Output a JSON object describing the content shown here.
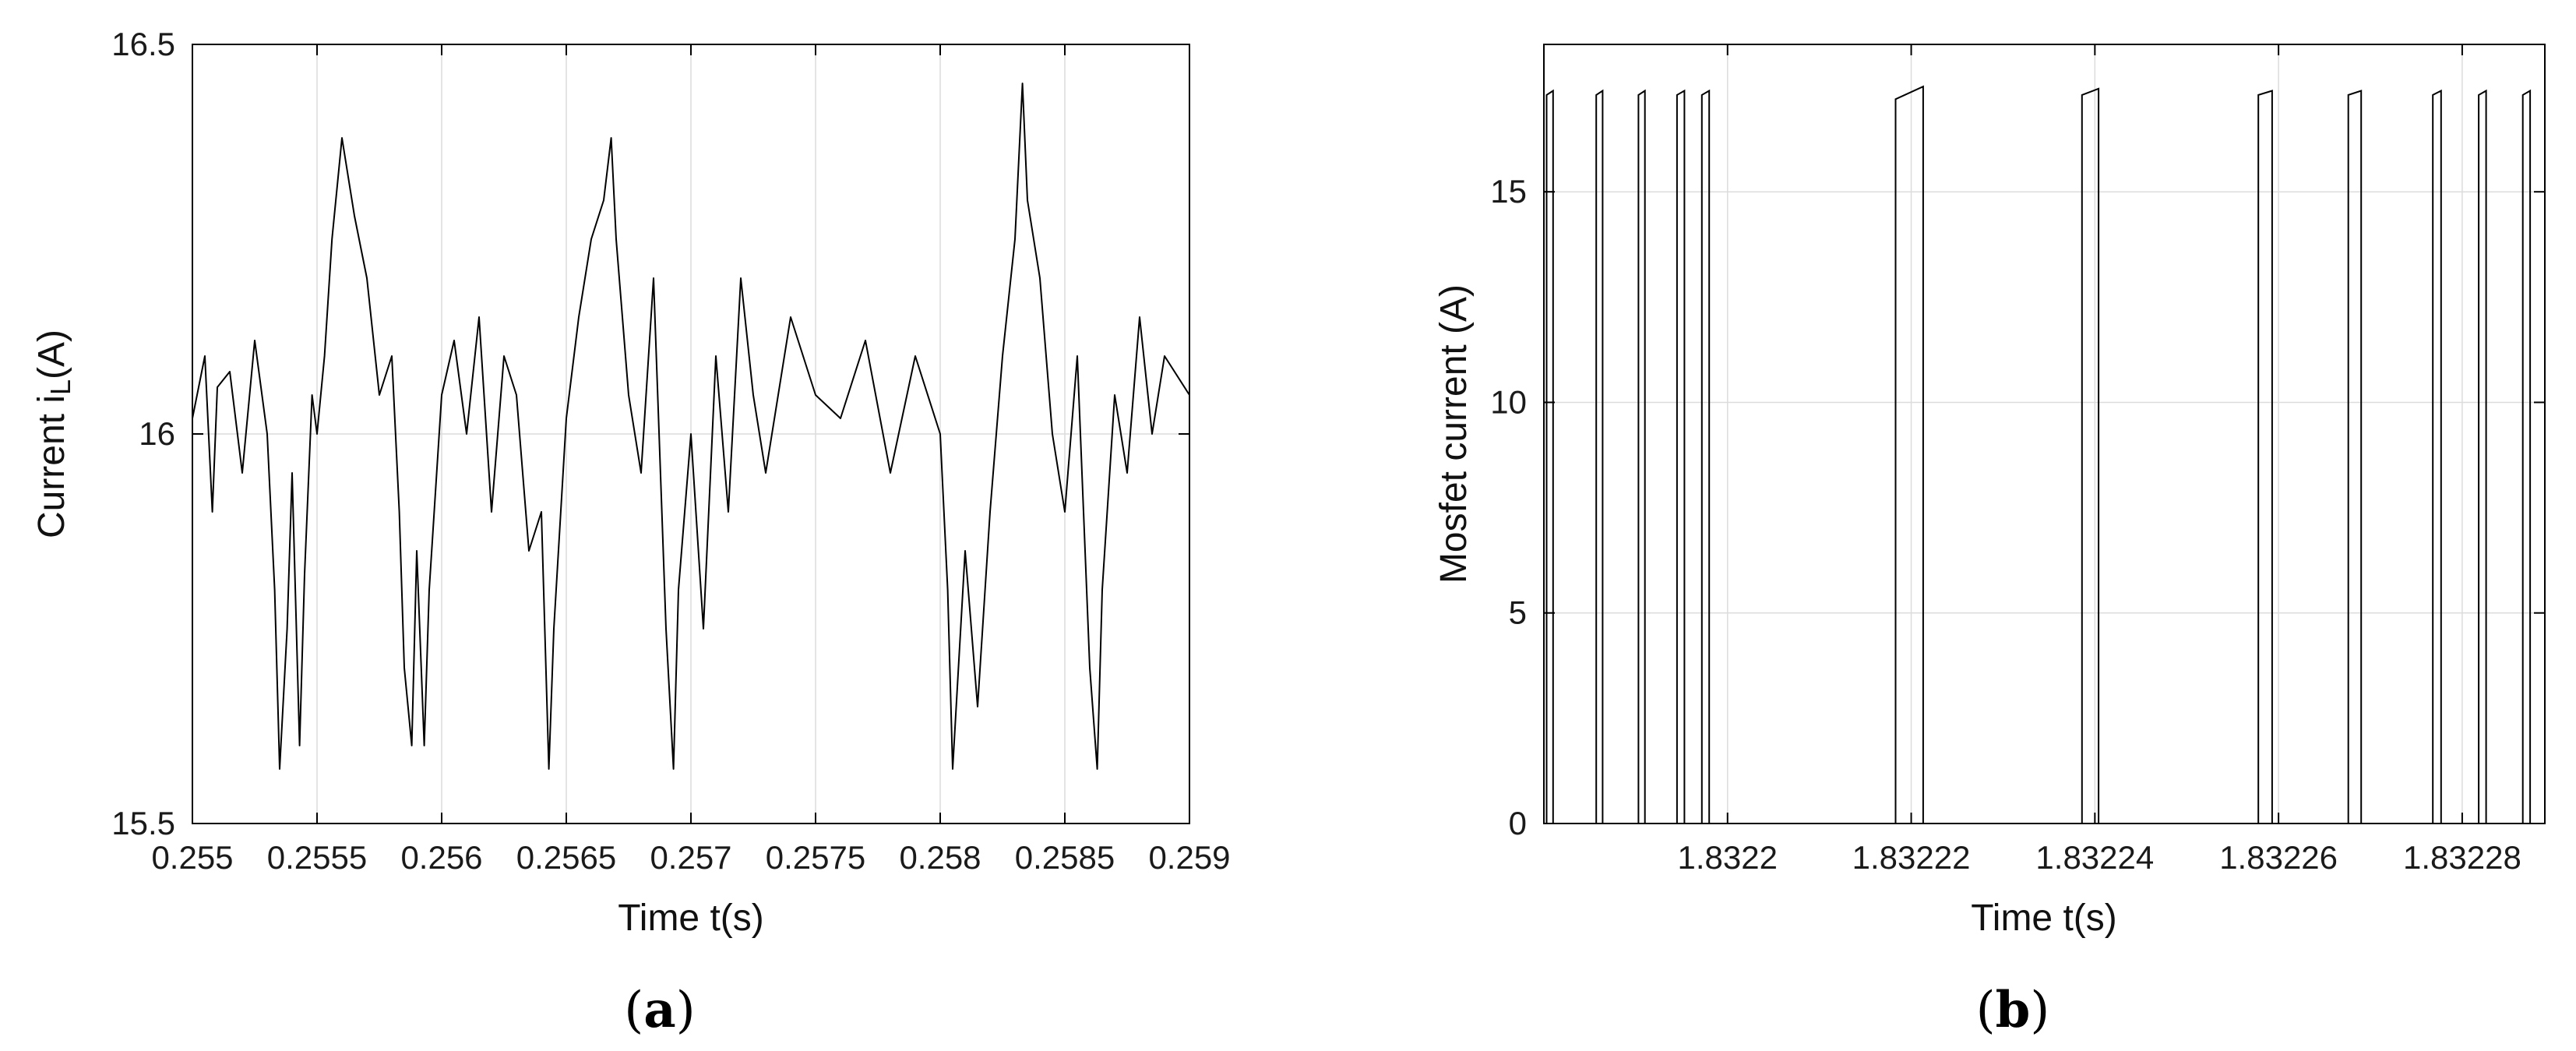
{
  "chart_data": [
    {
      "type": "line",
      "panel_label": "a",
      "xlabel": "Time t(s)",
      "ylabel": "Current i",
      "ylabel_subscript": "L",
      "ylabel_unit": "(A)",
      "xlim": [
        0.255,
        0.259
      ],
      "ylim": [
        15.5,
        16.5
      ],
      "xticks": [
        0.255,
        0.2555,
        0.256,
        0.2565,
        0.257,
        0.2575,
        0.258,
        0.2585,
        0.259
      ],
      "xtick_labels": [
        "0.255",
        "0.2555",
        "0.256",
        "0.2565",
        "0.257",
        "0.2575",
        "0.258",
        "0.2585",
        "0.259"
      ],
      "yticks": [
        15.5,
        16,
        16.5
      ],
      "ytick_labels": [
        "15.5",
        "16",
        "16.5"
      ],
      "grid": true,
      "series": [
        {
          "color": "#000000",
          "x": [
            0.255,
            0.25505,
            0.25508,
            0.2551,
            0.25515,
            0.2552,
            0.25525,
            0.2553,
            0.25533,
            0.25535,
            0.25538,
            0.2554,
            0.25543,
            0.25545,
            0.25548,
            0.2555,
            0.25553,
            0.25556,
            0.2556,
            0.25565,
            0.2557,
            0.25575,
            0.2558,
            0.25583,
            0.25585,
            0.25588,
            0.2559,
            0.25593,
            0.25595,
            0.256,
            0.25605,
            0.2561,
            0.25615,
            0.2562,
            0.25625,
            0.2563,
            0.25635,
            0.2564,
            0.25643,
            0.25645,
            0.2565,
            0.25655,
            0.2566,
            0.25665,
            0.25668,
            0.2567,
            0.25675,
            0.2568,
            0.25685,
            0.2569,
            0.25693,
            0.25695,
            0.257,
            0.25705,
            0.2571,
            0.25715,
            0.2572,
            0.25725,
            0.2573,
            0.2574,
            0.2575,
            0.2576,
            0.2577,
            0.2578,
            0.2579,
            0.258,
            0.25803,
            0.25805,
            0.2581,
            0.25815,
            0.2582,
            0.25825,
            0.2583,
            0.25833,
            0.25835,
            0.2584,
            0.25845,
            0.2585,
            0.25855,
            0.2586,
            0.25863,
            0.25865,
            0.2587,
            0.25875,
            0.2588,
            0.25885,
            0.2589,
            0.259
          ],
          "y": [
            16.02,
            16.1,
            15.9,
            16.06,
            16.08,
            15.95,
            16.12,
            16.0,
            15.8,
            15.57,
            15.75,
            15.95,
            15.6,
            15.82,
            16.05,
            16.0,
            16.1,
            16.25,
            16.38,
            16.28,
            16.2,
            16.05,
            16.1,
            15.9,
            15.7,
            15.6,
            15.85,
            15.6,
            15.8,
            16.05,
            16.12,
            16.0,
            16.15,
            15.9,
            16.1,
            16.05,
            15.85,
            15.9,
            15.57,
            15.75,
            16.02,
            16.15,
            16.25,
            16.3,
            16.38,
            16.25,
            16.05,
            15.95,
            16.2,
            15.75,
            15.57,
            15.8,
            16.0,
            15.75,
            16.1,
            15.9,
            16.2,
            16.05,
            15.95,
            16.15,
            16.05,
            16.02,
            16.12,
            15.95,
            16.1,
            16.0,
            15.8,
            15.57,
            15.85,
            15.65,
            15.9,
            16.1,
            16.25,
            16.45,
            16.3,
            16.2,
            16.0,
            15.9,
            16.1,
            15.7,
            15.57,
            15.8,
            16.05,
            15.95,
            16.15,
            16.0,
            16.1,
            16.05
          ]
        }
      ]
    },
    {
      "type": "line",
      "panel_label": "b",
      "xlabel": "Time t(s)",
      "ylabel": "Mosfet current (A)",
      "xlim": [
        1.83218,
        1.832289
      ],
      "ylim": [
        0,
        18.5
      ],
      "xticks": [
        1.8322,
        1.83222,
        1.83224,
        1.83226,
        1.83228
      ],
      "xtick_labels": [
        "1.8322",
        "1.83222",
        "1.83224",
        "1.83226",
        "1.83228"
      ],
      "yticks": [
        0,
        5,
        10,
        15
      ],
      "ytick_labels": [
        "0",
        "5",
        "10",
        "15"
      ],
      "grid": true,
      "pulses": [
        {
          "start": 1.8321803,
          "end": 1.832181,
          "y_start": 17.3,
          "y_end": 17.4
        },
        {
          "start": 1.8321857,
          "end": 1.8321864,
          "y_start": 17.3,
          "y_end": 17.4
        },
        {
          "start": 1.8321903,
          "end": 1.832191,
          "y_start": 17.3,
          "y_end": 17.4
        },
        {
          "start": 1.8321945,
          "end": 1.8321953,
          "y_start": 17.3,
          "y_end": 17.4
        },
        {
          "start": 1.8321972,
          "end": 1.832198,
          "y_start": 17.3,
          "y_end": 17.4
        },
        {
          "start": 1.8322183,
          "end": 1.8322213,
          "y_start": 17.2,
          "y_end": 17.5
        },
        {
          "start": 1.8322386,
          "end": 1.8322404,
          "y_start": 17.3,
          "y_end": 17.45
        },
        {
          "start": 1.8322578,
          "end": 1.8322593,
          "y_start": 17.3,
          "y_end": 17.4
        },
        {
          "start": 1.8322676,
          "end": 1.832269,
          "y_start": 17.3,
          "y_end": 17.4
        },
        {
          "start": 1.8322768,
          "end": 1.8322777,
          "y_start": 17.3,
          "y_end": 17.4
        },
        {
          "start": 1.8322818,
          "end": 1.8322826,
          "y_start": 17.3,
          "y_end": 17.4
        },
        {
          "start": 1.8322866,
          "end": 1.8322874,
          "y_start": 17.3,
          "y_end": 17.4
        }
      ]
    }
  ]
}
